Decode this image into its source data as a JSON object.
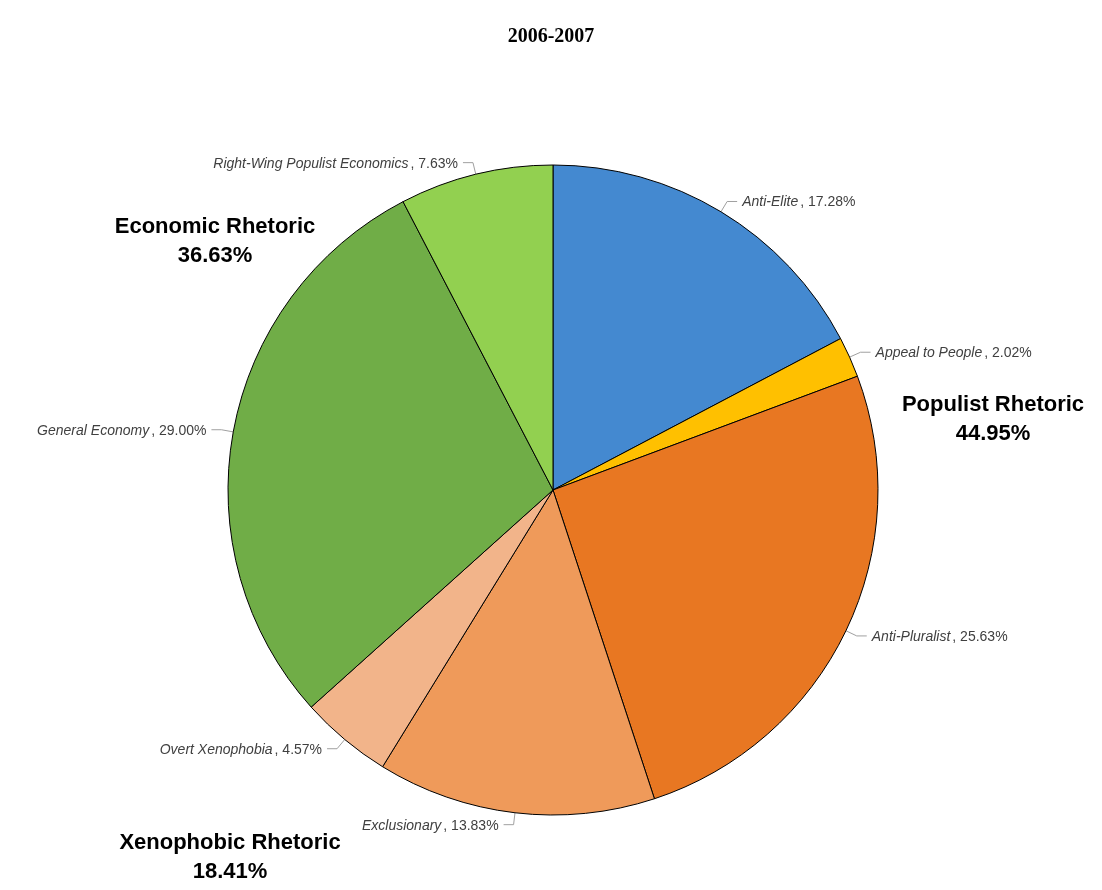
{
  "chart_data": {
    "type": "pie",
    "title": "2006-2007",
    "categories": [
      "Anti-Elite",
      "Appeal to People",
      "Anti-Pluralist",
      "Exclusionary",
      "Overt Xenophobia",
      "General Economy",
      "Right-Wing Populist Economics"
    ],
    "values": [
      17.28,
      2.02,
      25.63,
      13.83,
      4.57,
      29.0,
      7.63
    ],
    "value_labels": [
      ", 17.28%",
      ", 2.02%",
      ", 25.63%",
      ", 13.83%",
      ", 4.57%",
      ", 29.00%",
      ", 7.63%"
    ],
    "colors": [
      "#4489d0",
      "#ffc000",
      "#e87722",
      "#ef9a5a",
      "#f2b48a",
      "#70ad47",
      "#92d050"
    ],
    "annotations": [
      "Economic Rhetoric\n36.63%",
      "Populist Rhetoric\n44.95%",
      "Xenophobic Rhetoric\n18.41%"
    ],
    "legend": false
  }
}
